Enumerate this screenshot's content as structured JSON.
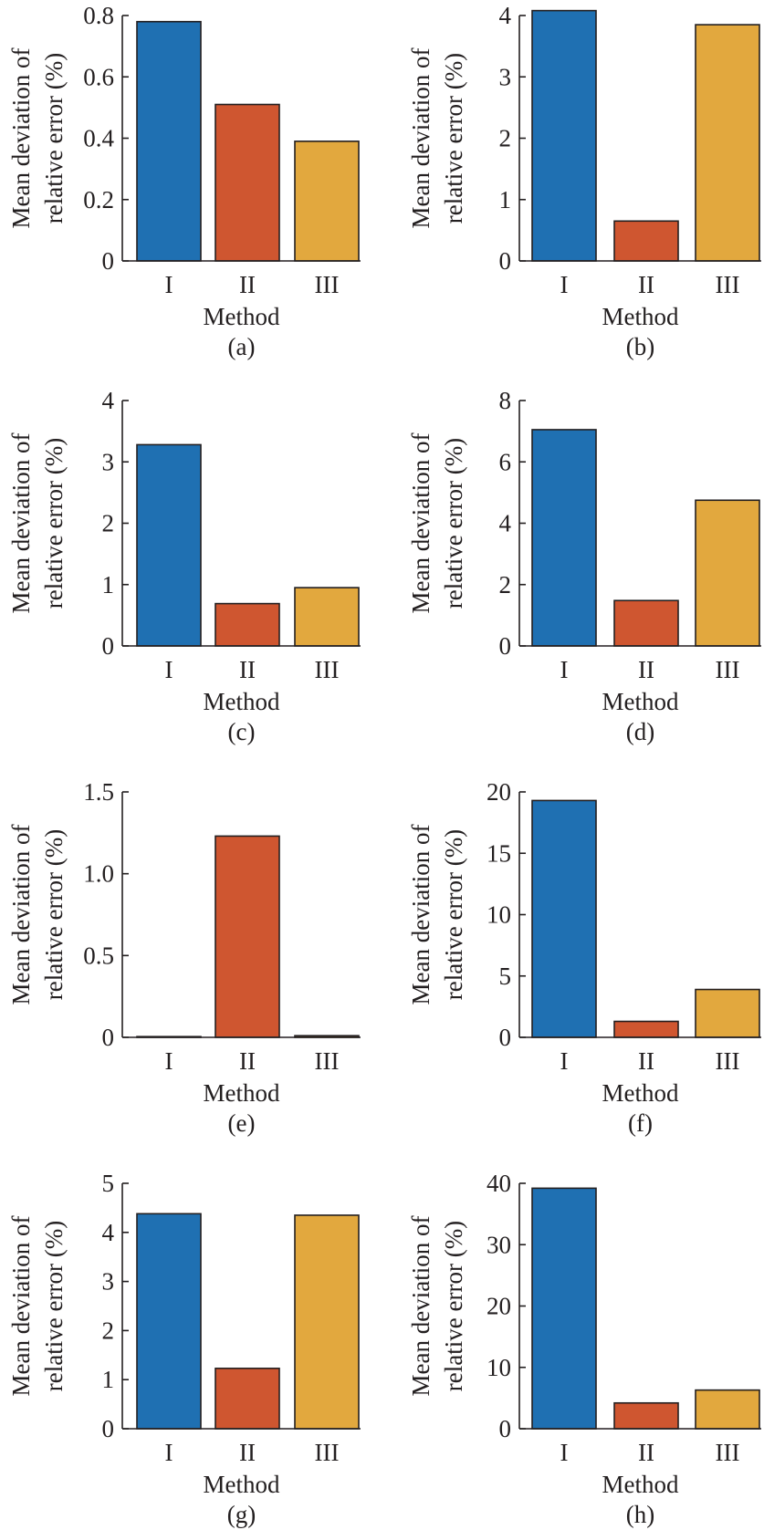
{
  "colors": {
    "I": "#1f70b2",
    "II": "#cf5630",
    "III": "#e2a83e",
    "axis": "#231f20"
  },
  "chart_data": [
    {
      "type": "bar",
      "caption": "(a)",
      "categories": [
        "I",
        "II",
        "III"
      ],
      "values": [
        0.78,
        0.51,
        0.39
      ],
      "xlabel": "Method",
      "ylabel": [
        "Mean deviation of",
        "relative error (%)"
      ],
      "ylim": [
        0,
        0.8
      ],
      "yticks": [
        0,
        0.2,
        0.4,
        0.6,
        0.8
      ],
      "ytick_labels": [
        "0",
        "0.2",
        "0.4",
        "0.6",
        "0.8"
      ]
    },
    {
      "type": "bar",
      "caption": "(b)",
      "categories": [
        "I",
        "II",
        "III"
      ],
      "values": [
        4.08,
        0.65,
        3.85
      ],
      "xlabel": "Method",
      "ylabel": [
        "Mean deviation of",
        "relative error (%)"
      ],
      "ylim": [
        0,
        4
      ],
      "yticks": [
        0,
        1,
        2,
        3,
        4
      ],
      "ytick_labels": [
        "0",
        "1",
        "2",
        "3",
        "4"
      ]
    },
    {
      "type": "bar",
      "caption": "(c)",
      "categories": [
        "I",
        "II",
        "III"
      ],
      "values": [
        3.28,
        0.69,
        0.95
      ],
      "xlabel": "Method",
      "ylabel": [
        "Mean deviation of",
        "relative error (%)"
      ],
      "ylim": [
        0,
        4
      ],
      "yticks": [
        0,
        1,
        2,
        3,
        4
      ],
      "ytick_labels": [
        "0",
        "1",
        "2",
        "3",
        "4"
      ]
    },
    {
      "type": "bar",
      "caption": "(d)",
      "categories": [
        "I",
        "II",
        "III"
      ],
      "values": [
        7.05,
        1.48,
        4.75
      ],
      "xlabel": "Method",
      "ylabel": [
        "Mean deviation of",
        "relative error (%)"
      ],
      "ylim": [
        0,
        8
      ],
      "yticks": [
        0,
        2,
        4,
        6,
        8
      ],
      "ytick_labels": [
        "0",
        "2",
        "4",
        "6",
        "8"
      ]
    },
    {
      "type": "bar",
      "caption": "(e)",
      "categories": [
        "I",
        "II",
        "III"
      ],
      "values": [
        0.003,
        1.23,
        0.01
      ],
      "xlabel": "Method",
      "ylabel": [
        "Mean deviation of",
        "relative error (%)"
      ],
      "ylim": [
        0,
        1.5
      ],
      "yticks": [
        0,
        0.5,
        1.0,
        1.5
      ],
      "ytick_labels": [
        "0",
        "0.5",
        "1.0",
        "1.5"
      ]
    },
    {
      "type": "bar",
      "caption": "(f)",
      "categories": [
        "I",
        "II",
        "III"
      ],
      "values": [
        19.3,
        1.3,
        3.9
      ],
      "xlabel": "Method",
      "ylabel": [
        "Mean deviation of",
        "relative error (%)"
      ],
      "ylim": [
        0,
        20
      ],
      "yticks": [
        0,
        5,
        10,
        15,
        20
      ],
      "ytick_labels": [
        "0",
        "5",
        "10",
        "15",
        "20"
      ]
    },
    {
      "type": "bar",
      "caption": "(g)",
      "categories": [
        "I",
        "II",
        "III"
      ],
      "values": [
        4.38,
        1.23,
        4.35
      ],
      "xlabel": "Method",
      "ylabel": [
        "Mean deviation of",
        "relative error (%)"
      ],
      "ylim": [
        0,
        5
      ],
      "yticks": [
        0,
        1,
        2,
        3,
        4,
        5
      ],
      "ytick_labels": [
        "0",
        "1",
        "2",
        "3",
        "4",
        "5"
      ]
    },
    {
      "type": "bar",
      "caption": "(h)",
      "categories": [
        "I",
        "II",
        "III"
      ],
      "values": [
        39.2,
        4.2,
        6.3
      ],
      "xlabel": "Method",
      "ylabel": [
        "Mean deviation of",
        "relative error (%)"
      ],
      "ylim": [
        0,
        40
      ],
      "yticks": [
        0,
        10,
        20,
        30,
        40
      ],
      "ytick_labels": [
        "0",
        "10",
        "20",
        "30",
        "40"
      ]
    }
  ]
}
